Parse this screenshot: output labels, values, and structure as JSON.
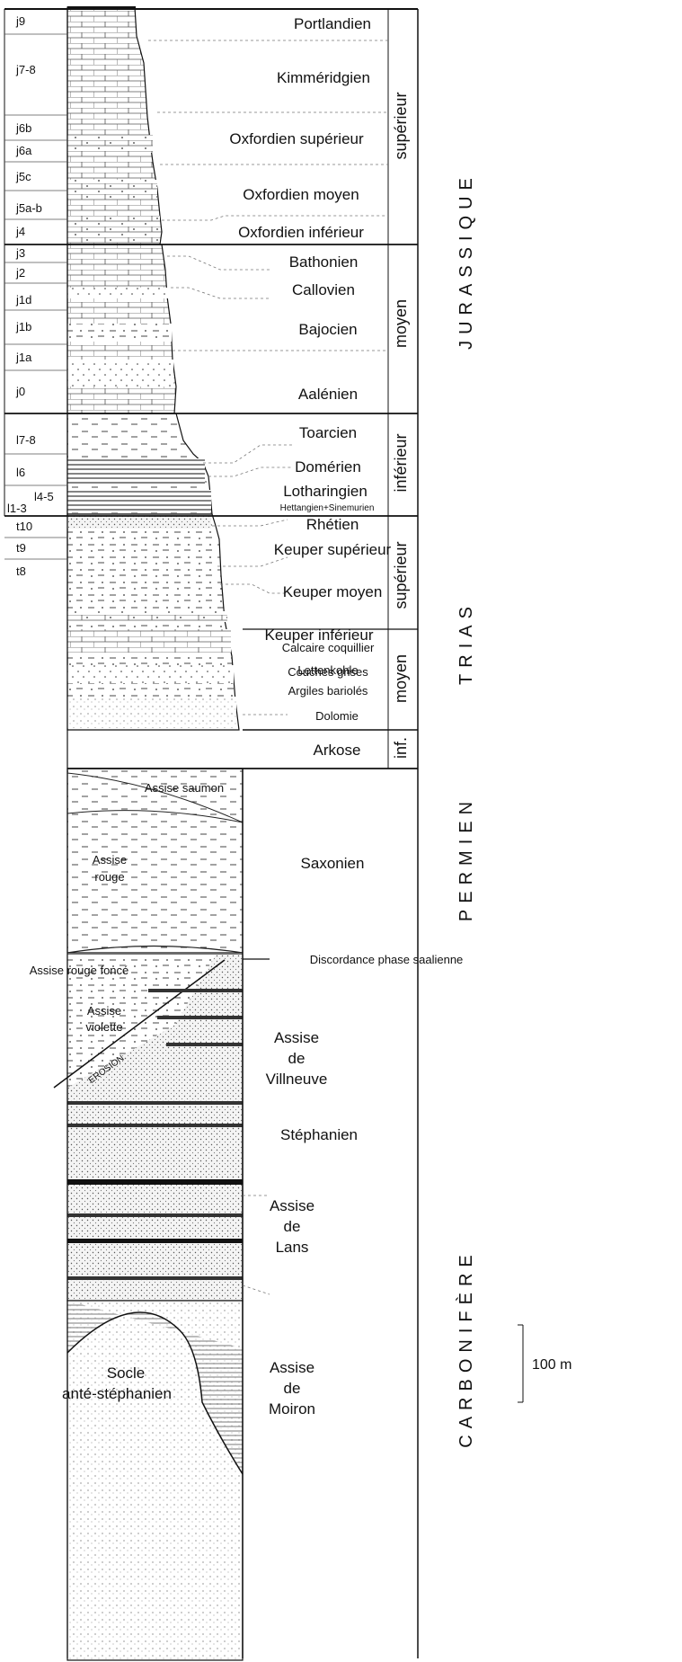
{
  "codes": [
    "j9",
    "j7-8",
    "j6b",
    "j6a",
    "j5c",
    "j5a-b",
    "j4",
    "j3",
    "j2",
    "j1d",
    "j1b",
    "j1a",
    "j0",
    "l7-8",
    "l6",
    "l4-5",
    "l1-3",
    "t10",
    "t9",
    "t8"
  ],
  "stages": {
    "portlandien": "Portlandien",
    "kimmeridgien": "Kimméridgien",
    "oxfordien_sup": "Oxfordien supérieur",
    "oxfordien_moy": "Oxfordien moyen",
    "oxfordien_inf": "Oxfordien inférieur",
    "bathonien": "Bathonien",
    "callovien": "Callovien",
    "bajocien": "Bajocien",
    "aalenien": "Aalénien",
    "toarcien": "Toarcien",
    "domerien": "Domérien",
    "lotharingien": "Lotharingien",
    "hettangien": "Hettangien+Sinemurien",
    "rhetien": "Rhétien",
    "keuper_sup": "Keuper supérieur",
    "keuper_moy": "Keuper moyen",
    "keuper_inf": "Keuper inférieur",
    "lettenkohle": "Lettenkohle",
    "calcaire": "Calcaire coquillier",
    "couches": "Couches grises",
    "argiles": "Argiles bariolés",
    "dolomie": "Dolomie",
    "arkose": "Arkose",
    "saxonien": "Saxonien",
    "discordance": "Discordance phase saalienne",
    "stephanien": "Stéphanien"
  },
  "subdivisions": {
    "jur_sup": "supérieur",
    "jur_moy": "moyen",
    "jur_inf": "inférieur",
    "tri_sup": "supérieur",
    "tri_moy": "moyen",
    "tri_inf": "inf."
  },
  "systems": {
    "jurassique": "JURASSIQUE",
    "trias": "TRIAS",
    "permien": "PERMIEN",
    "carbonifere": "CARBONIFÈRE"
  },
  "assises": {
    "saumon": "Assise saumon",
    "rouge_1": "Assise",
    "rouge_2": "rouge",
    "rouge_fonce": "Assise rouge foncé",
    "violette_1": "Assise",
    "violette_2": "violette",
    "erosion": "EROSION",
    "villneuve_1": "Assise",
    "villneuve_2": "de",
    "villneuve_3": "Villneuve",
    "lans_1": "Assise",
    "lans_2": "de",
    "lans_3": "Lans",
    "moiron_1": "Assise",
    "moiron_2": "de",
    "moiron_3": "Moiron",
    "socle_1": "Socle",
    "socle_2": "anté-stéphanien"
  },
  "scale_label": "100 m"
}
